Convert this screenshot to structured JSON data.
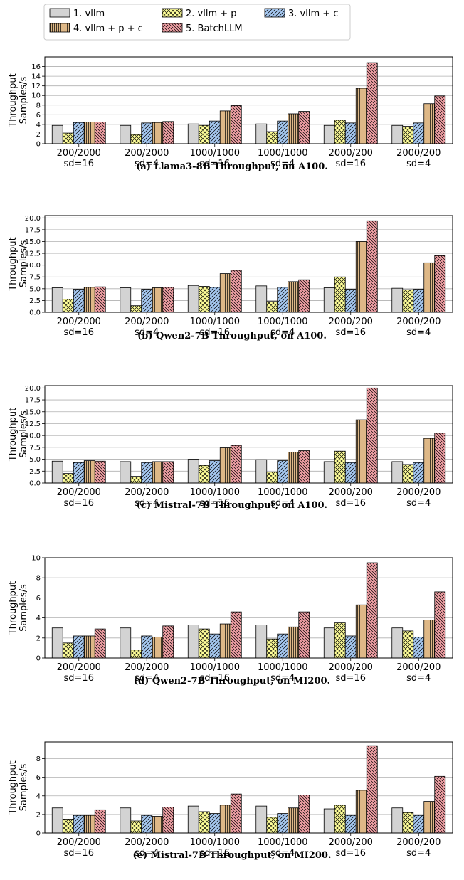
{
  "legend": [
    {
      "label": "1. vllm",
      "color": "#d3d3d3",
      "pattern": "none"
    },
    {
      "label": "2. vllm + p",
      "color": "#ffff99",
      "pattern": "cross"
    },
    {
      "label": "3. vllm + c",
      "color": "#a6c8f0",
      "pattern": "diag"
    },
    {
      "label": "4. vllm + p + c",
      "color": "#deb887",
      "pattern": "vert"
    },
    {
      "label": "5. BatchLLM",
      "color": "#f4a3a8",
      "pattern": "backdiag"
    }
  ],
  "chart_data": [
    {
      "type": "bar",
      "caption": "(a)  Llama3-8B Throughput, on A100.",
      "ylabel": [
        "Throughput",
        "Samples/s"
      ],
      "ylim": [
        0,
        18
      ],
      "yticks": [
        "0",
        "2",
        "4",
        "6",
        "8",
        "10",
        "12",
        "14",
        "16"
      ],
      "categories": [
        [
          "200/2000",
          "sd=16"
        ],
        [
          "200/2000",
          "sd=4"
        ],
        [
          "1000/1000",
          "sd=16"
        ],
        [
          "1000/1000",
          "sd=4"
        ],
        [
          "2000/200",
          "sd=16"
        ],
        [
          "2000/200",
          "sd=4"
        ]
      ],
      "series": [
        {
          "name": "1. vllm",
          "values": [
            3.8,
            3.8,
            4.1,
            4.1,
            3.8,
            3.8
          ]
        },
        {
          "name": "2. vllm + p",
          "values": [
            2.2,
            1.9,
            3.8,
            2.5,
            4.9,
            3.6
          ]
        },
        {
          "name": "3. vllm + c",
          "values": [
            4.4,
            4.3,
            4.7,
            4.7,
            4.3,
            4.3
          ]
        },
        {
          "name": "4. vllm + p + c",
          "values": [
            4.5,
            4.4,
            6.8,
            6.2,
            11.5,
            8.3
          ]
        },
        {
          "name": "5. BatchLLM",
          "values": [
            4.5,
            4.6,
            7.9,
            6.7,
            16.8,
            9.9
          ]
        }
      ]
    },
    {
      "type": "bar",
      "caption": "(b) Qwen2-7B Throughput, on A100.",
      "ylabel": [
        "Throughput",
        "Samples/s"
      ],
      "ylim": [
        0,
        20.5
      ],
      "yticks": [
        "0.0",
        "2.5",
        "5.0",
        "7.5",
        "10.0",
        "12.5",
        "15.0",
        "17.5",
        "20.0"
      ],
      "categories": [
        [
          "200/2000",
          "sd=16"
        ],
        [
          "200/2000",
          "sd=4"
        ],
        [
          "1000/1000",
          "sd=16"
        ],
        [
          "1000/1000",
          "sd=4"
        ],
        [
          "2000/200",
          "sd=16"
        ],
        [
          "2000/200",
          "sd=4"
        ]
      ],
      "series": [
        {
          "name": "1. vllm",
          "values": [
            5.2,
            5.2,
            5.7,
            5.6,
            5.2,
            5.1
          ]
        },
        {
          "name": "2. vllm + p",
          "values": [
            2.8,
            1.4,
            5.5,
            2.3,
            7.5,
            4.8
          ]
        },
        {
          "name": "3. vllm + c",
          "values": [
            4.9,
            4.9,
            5.3,
            5.3,
            4.9,
            4.9
          ]
        },
        {
          "name": "4. vllm + p + c",
          "values": [
            5.3,
            5.2,
            8.2,
            6.5,
            15.0,
            10.5
          ]
        },
        {
          "name": "5. BatchLLM",
          "values": [
            5.4,
            5.3,
            8.9,
            6.9,
            19.4,
            12.0
          ]
        }
      ]
    },
    {
      "type": "bar",
      "caption": "(c) Mistral-7B Throughput, on A100.",
      "ylabel": [
        "Throughput",
        "Samples/s"
      ],
      "ylim": [
        0,
        20.5
      ],
      "yticks": [
        "0.0",
        "2.5",
        "5.0",
        "7.5",
        "10.0",
        "12.5",
        "15.0",
        "17.5",
        "20.0"
      ],
      "categories": [
        [
          "200/2000",
          "sd=16"
        ],
        [
          "200/2000",
          "sd=4"
        ],
        [
          "1000/1000",
          "sd=16"
        ],
        [
          "1000/1000",
          "sd=4"
        ],
        [
          "2000/200",
          "sd=16"
        ],
        [
          "2000/200",
          "sd=4"
        ]
      ],
      "series": [
        {
          "name": "1. vllm",
          "values": [
            4.6,
            4.5,
            5.0,
            4.9,
            4.5,
            4.5
          ]
        },
        {
          "name": "2. vllm + p",
          "values": [
            2.0,
            1.4,
            3.7,
            2.3,
            6.7,
            3.9
          ]
        },
        {
          "name": "3. vllm + c",
          "values": [
            4.3,
            4.3,
            4.7,
            4.7,
            4.3,
            4.3
          ]
        },
        {
          "name": "4. vllm + p + c",
          "values": [
            4.7,
            4.5,
            7.4,
            6.5,
            13.3,
            9.4
          ]
        },
        {
          "name": "5. BatchLLM",
          "values": [
            4.6,
            4.5,
            7.9,
            6.8,
            20.0,
            10.5
          ]
        }
      ]
    },
    {
      "type": "bar",
      "caption": "(d) Qwen2-7B Throughput, on MI200.",
      "ylabel": [
        "Throughput",
        "Samples/s"
      ],
      "ylim": [
        0,
        10
      ],
      "yticks": [
        "0",
        "2",
        "4",
        "6",
        "8",
        "10"
      ],
      "categories": [
        [
          "200/2000",
          "sd=16"
        ],
        [
          "200/2000",
          "sd=4"
        ],
        [
          "1000/1000",
          "sd=16"
        ],
        [
          "1000/1000",
          "sd=4"
        ],
        [
          "2000/200",
          "sd=16"
        ],
        [
          "2000/200",
          "sd=4"
        ]
      ],
      "series": [
        {
          "name": "1. vllm",
          "values": [
            3.0,
            3.0,
            3.3,
            3.3,
            3.0,
            3.0
          ]
        },
        {
          "name": "2. vllm + p",
          "values": [
            1.5,
            0.8,
            2.9,
            1.9,
            3.5,
            2.7
          ]
        },
        {
          "name": "3. vllm + c",
          "values": [
            2.2,
            2.2,
            2.4,
            2.4,
            2.2,
            2.1
          ]
        },
        {
          "name": "4. vllm + p + c",
          "values": [
            2.2,
            2.1,
            3.4,
            3.1,
            5.3,
            3.8
          ]
        },
        {
          "name": "5. BatchLLM",
          "values": [
            2.9,
            3.2,
            4.6,
            4.6,
            9.5,
            6.6
          ]
        }
      ]
    },
    {
      "type": "bar",
      "caption": "(e) Mistral-7B Throughput, on MI200.",
      "ylabel": [
        "Throughput",
        "Samples/s"
      ],
      "ylim": [
        0,
        9.8
      ],
      "yticks": [
        "0",
        "2",
        "4",
        "6",
        "8"
      ],
      "categories": [
        [
          "200/2000",
          "sd=16"
        ],
        [
          "200/2000",
          "sd=4"
        ],
        [
          "1000/1000",
          "sd=16"
        ],
        [
          "1000/1000",
          "sd=4"
        ],
        [
          "2000/200",
          "sd=16"
        ],
        [
          "2000/200",
          "sd=4"
        ]
      ],
      "series": [
        {
          "name": "1. vllm",
          "values": [
            2.7,
            2.7,
            2.9,
            2.9,
            2.6,
            2.7
          ]
        },
        {
          "name": "2. vllm + p",
          "values": [
            1.5,
            1.3,
            2.3,
            1.7,
            3.0,
            2.2
          ]
        },
        {
          "name": "3. vllm + c",
          "values": [
            1.9,
            1.9,
            2.1,
            2.1,
            1.9,
            1.9
          ]
        },
        {
          "name": "4. vllm + p + c",
          "values": [
            1.9,
            1.8,
            3.0,
            2.7,
            4.6,
            3.4
          ]
        },
        {
          "name": "5. BatchLLM",
          "values": [
            2.5,
            2.8,
            4.2,
            4.1,
            9.4,
            6.1
          ]
        }
      ]
    }
  ]
}
